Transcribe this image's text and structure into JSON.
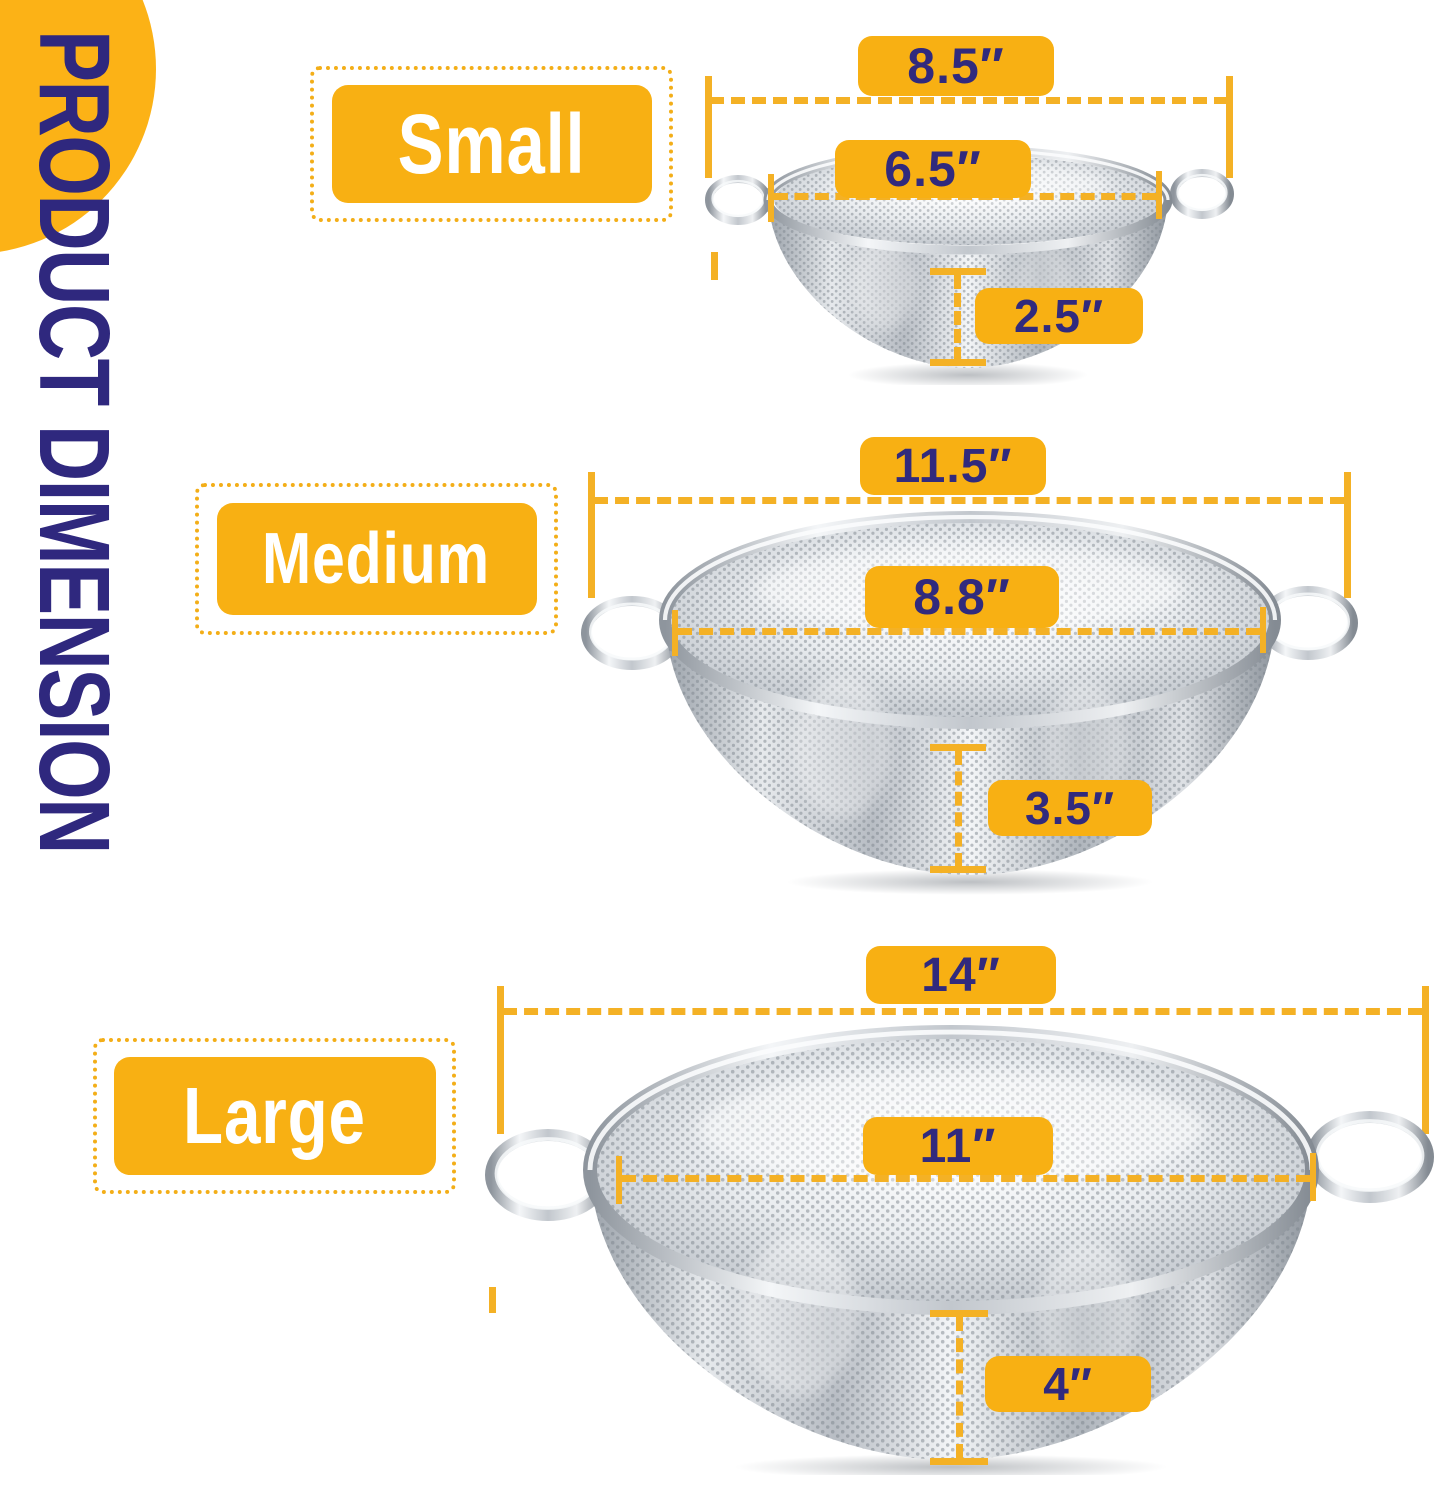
{
  "title": "PRODUCT DIMENSION",
  "sections": [
    {
      "id": "small",
      "label": "Small",
      "outer_width": "8.5″",
      "inner_width": "6.5″",
      "depth": "2.5″"
    },
    {
      "id": "medium",
      "label": "Medium",
      "outer_width": "11.5″",
      "inner_width": "8.8″",
      "depth": "3.5″"
    },
    {
      "id": "large",
      "label": "Large",
      "outer_width": "14″",
      "inner_width": "11″",
      "depth": "4″"
    }
  ],
  "colors": {
    "label_background": "#f8b013",
    "dimension_line": "#f4b125",
    "text_navy": "#312a7d",
    "badge_text": "#ffffff",
    "accent_circle": "#fcb216",
    "title_text": "#2f287e"
  }
}
